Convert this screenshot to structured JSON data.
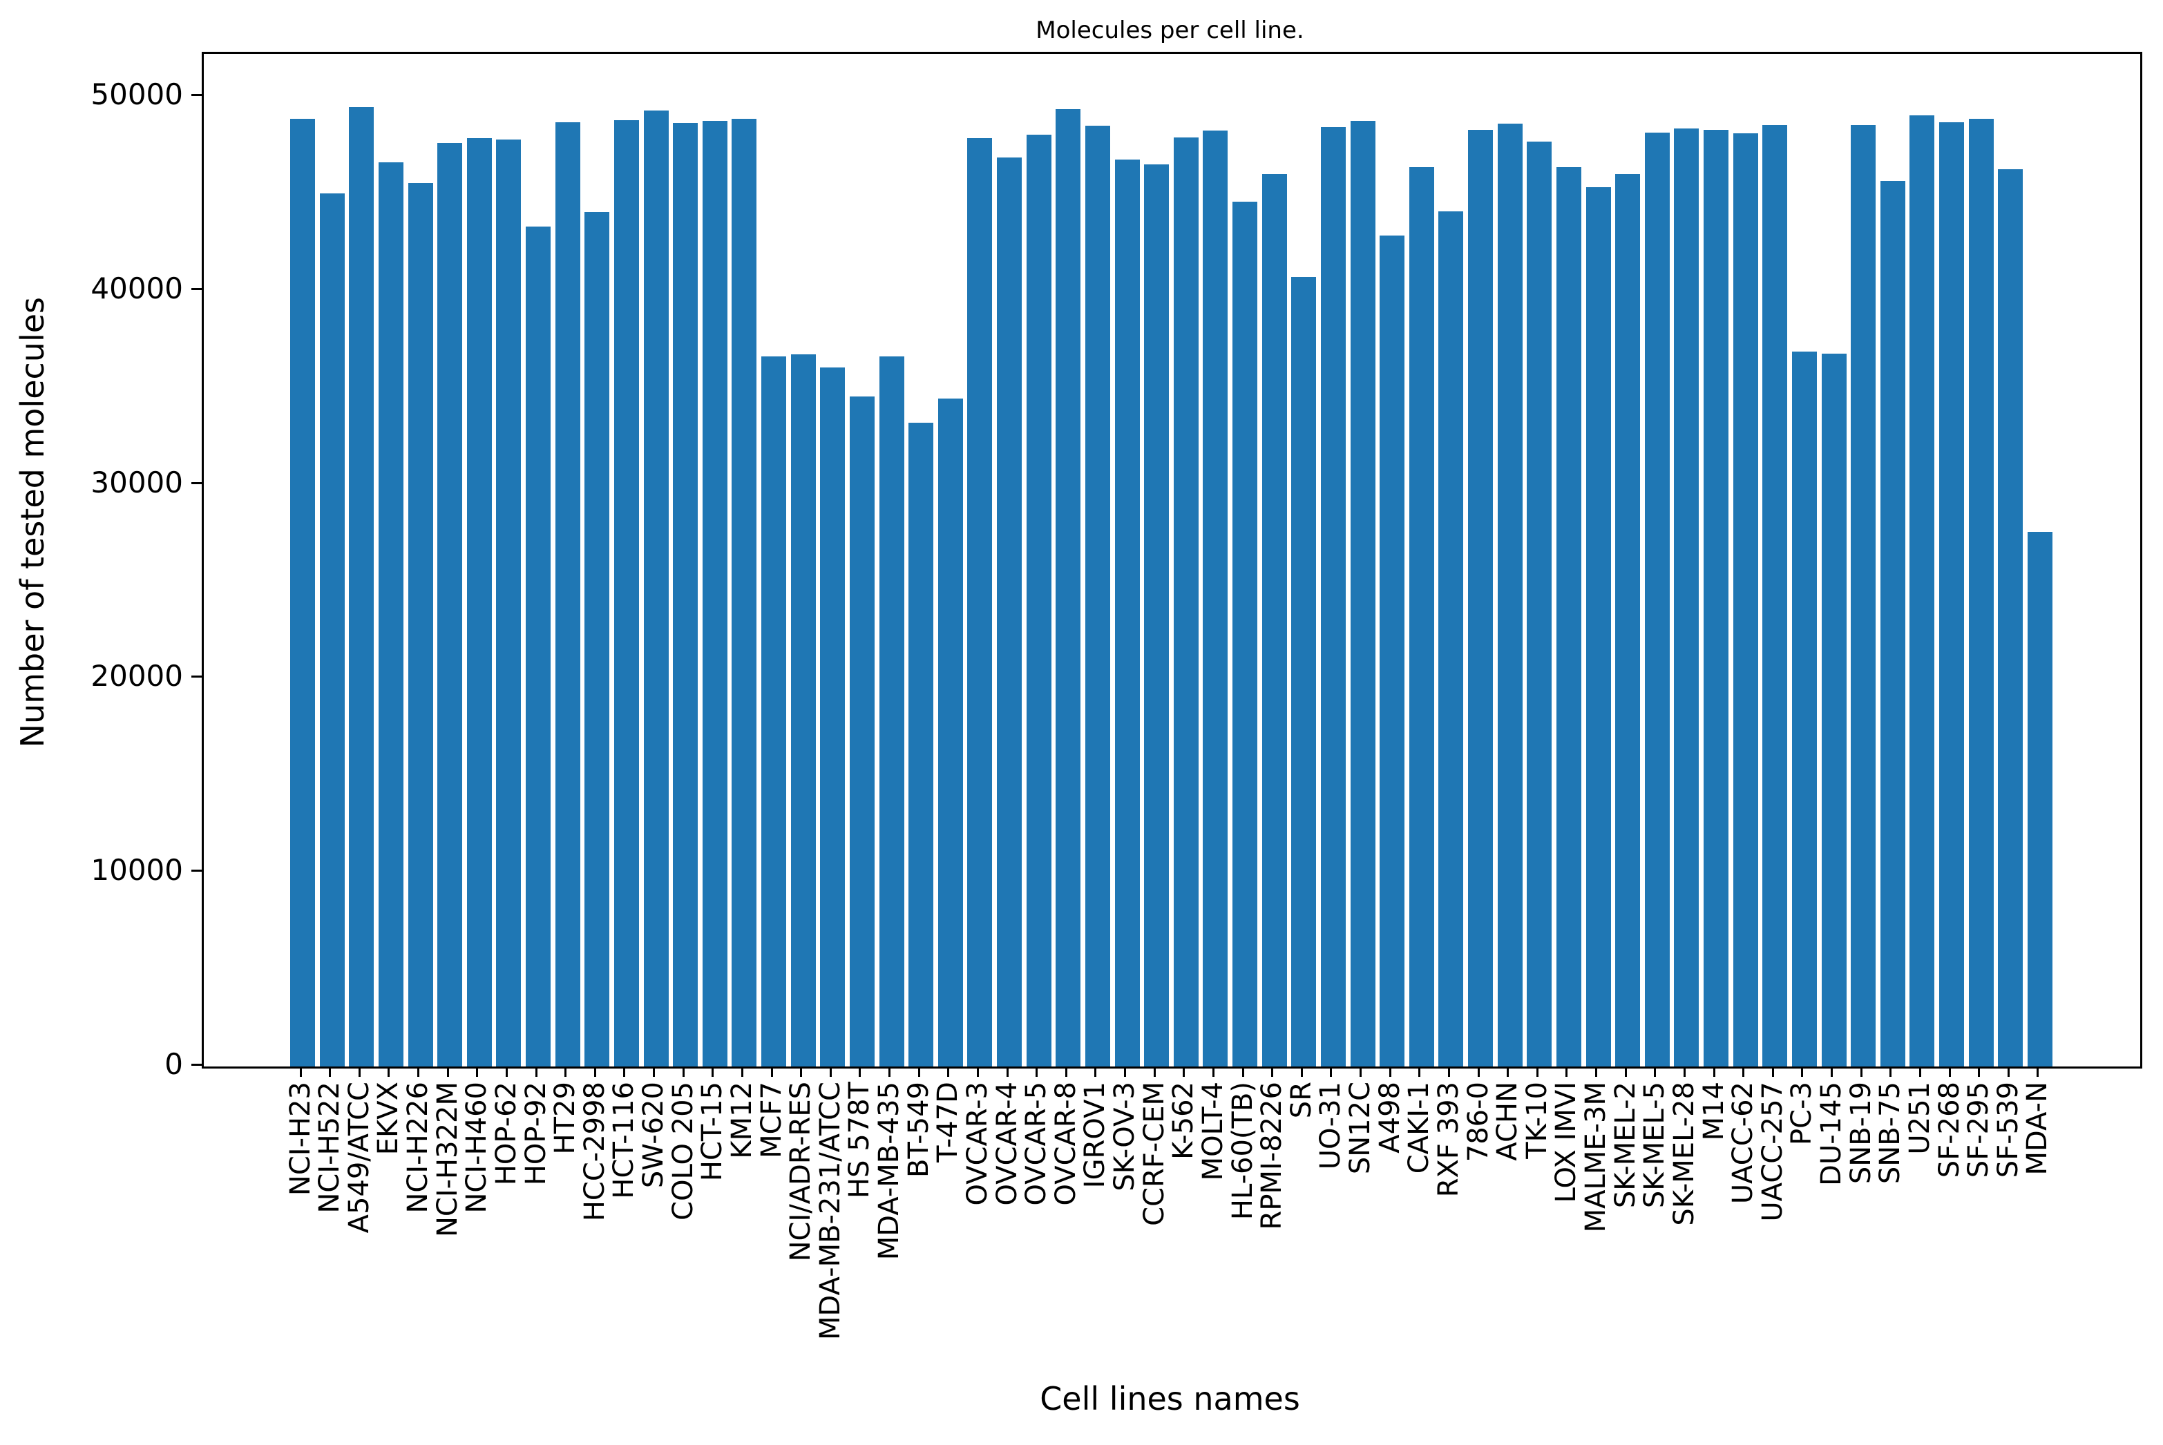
{
  "title": "Molecules per cell line.",
  "xlabel": "Cell lines names",
  "ylabel": "Number of tested molecules",
  "colors": {
    "bar": "#1f77b4",
    "axis": "#000000",
    "background": "#ffffff"
  },
  "chart_data": {
    "type": "bar",
    "title": "Molecules per cell line.",
    "xlabel": "Cell lines names",
    "ylabel": "Number of tested molecules",
    "grid": false,
    "legend": null,
    "ylim": [
      0,
      52200
    ],
    "yticks": [
      0,
      10000,
      20000,
      30000,
      40000,
      50000
    ],
    "categories": [
      "NCI-H23",
      "NCI-H522",
      "A549/ATCC",
      "EKVX",
      "NCI-H226",
      "NCI-H322M",
      "NCI-H460",
      "HOP-62",
      "HOP-92",
      "HT29",
      "HCC-2998",
      "HCT-116",
      "SW-620",
      "COLO 205",
      "HCT-15",
      "KM12",
      "MCF7",
      "NCI/ADR-RES",
      "MDA-MB-231/ATCC",
      "HS 578T",
      "MDA-MB-435",
      "BT-549",
      "T-47D",
      "OVCAR-3",
      "OVCAR-4",
      "OVCAR-5",
      "OVCAR-8",
      "IGROV1",
      "SK-OV-3",
      "CCRF-CEM",
      "K-562",
      "MOLT-4",
      "HL-60(TB)",
      "RPMI-8226",
      "SR",
      "UO-31",
      "SN12C",
      "A498",
      "CAKI-1",
      "RXF 393",
      "786-0",
      "ACHN",
      "TK-10",
      "LOX IMVI",
      "MALME-3M",
      "SK-MEL-2",
      "SK-MEL-5",
      "SK-MEL-28",
      "M14",
      "UACC-62",
      "UACC-257",
      "PC-3",
      "DU-145",
      "SNB-19",
      "SNB-75",
      "U251",
      "SF-268",
      "SF-295",
      "SF-539",
      "MDA-N"
    ],
    "values": [
      48850,
      45000,
      49450,
      46600,
      45550,
      47600,
      47850,
      47800,
      43300,
      48700,
      44050,
      48800,
      49300,
      48650,
      48750,
      48850,
      36600,
      36700,
      36050,
      34550,
      36600,
      33200,
      34450,
      47850,
      46850,
      48050,
      49350,
      48500,
      46750,
      46500,
      47900,
      48250,
      44600,
      46000,
      40700,
      48450,
      48750,
      42850,
      46350,
      44100,
      48300,
      48600,
      47700,
      46350,
      45350,
      46000,
      48150,
      48350,
      48300,
      48100,
      48550,
      36850,
      36750,
      48550,
      45650,
      49050,
      48700,
      48850,
      46250,
      27550
    ]
  }
}
